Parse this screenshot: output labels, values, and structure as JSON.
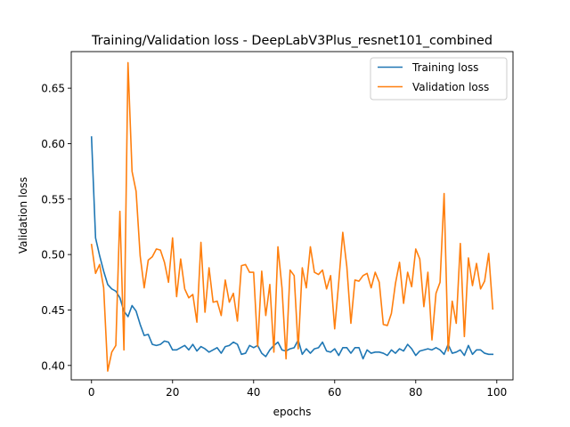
{
  "chart_data": {
    "type": "line",
    "title": "Training/Validation loss - DeepLabV3Plus_resnet101_combined",
    "xlabel": "epochs",
    "ylabel": "Validation loss",
    "xlim": [
      -5,
      104
    ],
    "ylim": [
      0.387,
      0.683
    ],
    "xticks": [
      0,
      20,
      40,
      60,
      80,
      100
    ],
    "yticks": [
      0.4,
      0.45,
      0.5,
      0.55,
      0.6,
      0.65
    ],
    "xtick_labels": [
      "0",
      "20",
      "40",
      "60",
      "80",
      "100"
    ],
    "ytick_labels": [
      "0.40",
      "0.45",
      "0.50",
      "0.55",
      "0.60",
      "0.65"
    ],
    "legend_position": "top-right",
    "grid": false,
    "series": [
      {
        "name": "Training loss",
        "color": "#1f77b4",
        "x": [
          0,
          1,
          2,
          3,
          4,
          5,
          6,
          7,
          8,
          9,
          10,
          11,
          12,
          13,
          14,
          15,
          16,
          17,
          18,
          19,
          20,
          21,
          22,
          23,
          24,
          25,
          26,
          27,
          28,
          29,
          30,
          31,
          32,
          33,
          34,
          35,
          36,
          37,
          38,
          39,
          40,
          41,
          42,
          43,
          44,
          45,
          46,
          47,
          48,
          49,
          50,
          51,
          52,
          53,
          54,
          55,
          56,
          57,
          58,
          59,
          60,
          61,
          62,
          63,
          64,
          65,
          66,
          67,
          68,
          69,
          70,
          71,
          72,
          73,
          74,
          75,
          76,
          77,
          78,
          79,
          80,
          81,
          82,
          83,
          84,
          85,
          86,
          87,
          88,
          89,
          90,
          91,
          92,
          93,
          94,
          95,
          96,
          97,
          98,
          99
        ],
        "y": [
          0.606,
          0.515,
          0.499,
          0.485,
          0.473,
          0.469,
          0.467,
          0.461,
          0.449,
          0.444,
          0.454,
          0.449,
          0.437,
          0.427,
          0.428,
          0.419,
          0.418,
          0.419,
          0.422,
          0.421,
          0.414,
          0.414,
          0.416,
          0.418,
          0.414,
          0.419,
          0.413,
          0.417,
          0.415,
          0.412,
          0.414,
          0.416,
          0.411,
          0.417,
          0.418,
          0.421,
          0.419,
          0.41,
          0.411,
          0.418,
          0.416,
          0.418,
          0.411,
          0.408,
          0.414,
          0.418,
          0.421,
          0.414,
          0.413,
          0.415,
          0.416,
          0.423,
          0.41,
          0.415,
          0.411,
          0.415,
          0.416,
          0.421,
          0.413,
          0.412,
          0.415,
          0.409,
          0.416,
          0.416,
          0.411,
          0.416,
          0.416,
          0.406,
          0.414,
          0.411,
          0.412,
          0.412,
          0.411,
          0.409,
          0.414,
          0.411,
          0.415,
          0.413,
          0.419,
          0.415,
          0.409,
          0.413,
          0.414,
          0.415,
          0.414,
          0.416,
          0.414,
          0.41,
          0.419,
          0.411,
          0.412,
          0.414,
          0.409,
          0.418,
          0.41,
          0.414,
          0.414,
          0.411,
          0.41,
          0.41
        ]
      },
      {
        "name": "Validation loss",
        "color": "#ff7f0e",
        "x": [
          0,
          1,
          2,
          3,
          4,
          5,
          6,
          7,
          8,
          9,
          10,
          11,
          12,
          13,
          14,
          15,
          16,
          17,
          18,
          19,
          20,
          21,
          22,
          23,
          24,
          25,
          26,
          27,
          28,
          29,
          30,
          31,
          32,
          33,
          34,
          35,
          36,
          37,
          38,
          39,
          40,
          41,
          42,
          43,
          44,
          45,
          46,
          47,
          48,
          49,
          50,
          51,
          52,
          53,
          54,
          55,
          56,
          57,
          58,
          59,
          60,
          61,
          62,
          63,
          64,
          65,
          66,
          67,
          68,
          69,
          70,
          71,
          72,
          73,
          74,
          75,
          76,
          77,
          78,
          79,
          80,
          81,
          82,
          83,
          84,
          85,
          86,
          87,
          88,
          89,
          90,
          91,
          92,
          93,
          94,
          95,
          96,
          97,
          98,
          99
        ],
        "y": [
          0.509,
          0.483,
          0.491,
          0.47,
          0.395,
          0.412,
          0.418,
          0.539,
          0.414,
          0.673,
          0.575,
          0.557,
          0.499,
          0.47,
          0.495,
          0.498,
          0.505,
          0.504,
          0.493,
          0.475,
          0.515,
          0.462,
          0.496,
          0.469,
          0.461,
          0.464,
          0.439,
          0.511,
          0.448,
          0.488,
          0.457,
          0.458,
          0.445,
          0.477,
          0.457,
          0.465,
          0.44,
          0.49,
          0.491,
          0.484,
          0.484,
          0.417,
          0.485,
          0.445,
          0.473,
          0.412,
          0.507,
          0.47,
          0.406,
          0.486,
          0.481,
          0.415,
          0.488,
          0.47,
          0.507,
          0.484,
          0.482,
          0.486,
          0.469,
          0.481,
          0.433,
          0.475,
          0.52,
          0.489,
          0.438,
          0.477,
          0.476,
          0.481,
          0.483,
          0.47,
          0.484,
          0.475,
          0.437,
          0.436,
          0.447,
          0.474,
          0.493,
          0.456,
          0.484,
          0.471,
          0.505,
          0.496,
          0.453,
          0.484,
          0.423,
          0.465,
          0.475,
          0.555,
          0.413,
          0.458,
          0.438,
          0.51,
          0.426,
          0.497,
          0.472,
          0.492,
          0.469,
          0.476,
          0.501,
          0.451
        ]
      }
    ]
  }
}
